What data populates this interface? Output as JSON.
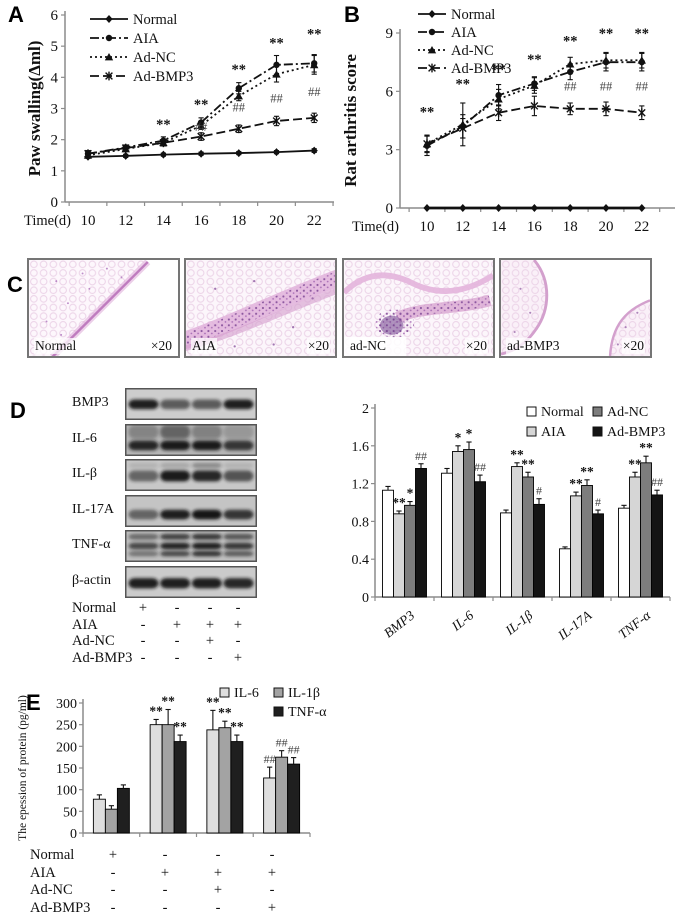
{
  "figure": {
    "panels": {
      "A": {
        "label": "A"
      },
      "B": {
        "label": "B"
      },
      "C": {
        "label": "C",
        "images": [
          {
            "name": "Normal",
            "mag": "×20"
          },
          {
            "name": "AIA",
            "mag": "×20"
          },
          {
            "name": "ad-NC",
            "mag": "×20"
          },
          {
            "name": "ad-BMP3",
            "mag": "×20"
          }
        ]
      },
      "D": {
        "label": "D",
        "blots": {
          "rows": [
            {
              "label": "BMP3",
              "bg": "#cdcdcd",
              "bands": [
                {
                  "t": 0.36,
                  "h": 0.3,
                  "la": [
                    0.95,
                    0.62,
                    0.62,
                    0.95
                  ]
                }
              ]
            },
            {
              "label": "IL-6",
              "bg": "#b5b5b5",
              "bands": [
                {
                  "t": 0.04,
                  "h": 0.42,
                  "la": [
                    0.3,
                    0.5,
                    0.32,
                    0.18
                  ]
                },
                {
                  "t": 0.52,
                  "h": 0.3,
                  "la": [
                    0.9,
                    0.97,
                    0.97,
                    0.8
                  ]
                }
              ]
            },
            {
              "label": "IL-β",
              "bg": "#c8c8c8",
              "bands": [
                {
                  "t": 0.12,
                  "h": 0.16,
                  "la": [
                    0.12,
                    0.18,
                    0.35,
                    0.12
                  ]
                },
                {
                  "t": 0.36,
                  "h": 0.34,
                  "la": [
                    0.55,
                    0.97,
                    0.9,
                    0.65
                  ]
                }
              ]
            },
            {
              "label": "IL-17A",
              "bg": "#c4c4c4",
              "bands": [
                {
                  "t": 0.46,
                  "h": 0.3,
                  "la": [
                    0.55,
                    0.95,
                    1.0,
                    0.82
                  ]
                }
              ]
            },
            {
              "label": "TNF-α",
              "bg": "#bfbfbf",
              "bands": [
                {
                  "t": 0.12,
                  "h": 0.18,
                  "la": [
                    0.5,
                    0.75,
                    0.8,
                    0.62
                  ]
                },
                {
                  "t": 0.4,
                  "h": 0.2,
                  "la": [
                    0.7,
                    0.92,
                    0.95,
                    0.8
                  ]
                },
                {
                  "t": 0.66,
                  "h": 0.16,
                  "la": [
                    0.45,
                    0.72,
                    0.85,
                    0.6
                  ]
                }
              ]
            },
            {
              "label": "β-actin",
              "bg": "#cbcbcb",
              "bands": [
                {
                  "t": 0.38,
                  "h": 0.32,
                  "la": [
                    0.95,
                    0.95,
                    0.95,
                    0.9
                  ]
                }
              ]
            }
          ]
        },
        "conditions": {
          "rows": [
            {
              "label": "Normal",
              "cells": [
                "+",
                "-",
                "-",
                "-"
              ]
            },
            {
              "label": "AIA",
              "cells": [
                "-",
                "+",
                "+",
                "+"
              ]
            },
            {
              "label": "Ad-NC",
              "cells": [
                "-",
                "-",
                "+",
                "-"
              ]
            },
            {
              "label": "Ad-BMP3",
              "cells": [
                "-",
                "-",
                "-",
                "+"
              ]
            }
          ]
        }
      },
      "E": {
        "label": "E",
        "conditions": {
          "rows": [
            {
              "label": "Normal",
              "cells": [
                "+",
                "-",
                "-",
                "-"
              ]
            },
            {
              "label": "AIA",
              "cells": [
                "-",
                "+",
                "+",
                "+"
              ]
            },
            {
              "label": "Ad-NC",
              "cells": [
                "-",
                "-",
                "+",
                "-"
              ]
            },
            {
              "label": "Ad-BMP3",
              "cells": [
                "-",
                "-",
                "-",
                "+"
              ]
            }
          ]
        }
      }
    },
    "palette": {
      "ink": "#111111",
      "axis_gray": "#8c8c8c",
      "histology_pink": "#f9eff7",
      "histology_purple": "#8d58a0"
    }
  },
  "chart_data": [
    {
      "id": "A",
      "panel": "A",
      "type": "line",
      "x": [
        10,
        12,
        14,
        16,
        18,
        20,
        22
      ],
      "xlabel": "Time(d)",
      "ylabel": "Paw swalling(Δml)",
      "ylim": [
        0,
        6
      ],
      "yticks": [
        0,
        1,
        2,
        3,
        4,
        5,
        6
      ],
      "grid": false,
      "legend_position": "top-left-inside",
      "series": [
        {
          "name": "Normal",
          "marker": "diamond",
          "dash": "solid",
          "values": [
            1.45,
            1.48,
            1.52,
            1.55,
            1.57,
            1.6,
            1.65
          ],
          "err": [
            0.05,
            0.05,
            0.05,
            0.05,
            0.05,
            0.05,
            0.06
          ]
        },
        {
          "name": "AIA",
          "marker": "circle",
          "dash": "dashdot",
          "values": [
            1.55,
            1.75,
            1.97,
            2.55,
            3.65,
            4.4,
            4.45
          ],
          "err": [
            0.1,
            0.08,
            0.12,
            0.15,
            0.18,
            0.3,
            0.28
          ]
        },
        {
          "name": "Ad-NC",
          "marker": "triangle",
          "dash": "dot",
          "values": [
            1.5,
            1.7,
            1.9,
            2.45,
            3.4,
            4.1,
            4.4
          ],
          "err": [
            0.08,
            0.07,
            0.1,
            0.12,
            0.15,
            0.25,
            0.3
          ]
        },
        {
          "name": "Ad-BMP3",
          "marker": "xstar",
          "dash": "dash",
          "values": [
            1.55,
            1.73,
            1.9,
            2.1,
            2.35,
            2.6,
            2.7
          ],
          "err": [
            0.08,
            0.07,
            0.1,
            0.12,
            0.12,
            0.15,
            0.15
          ]
        }
      ],
      "annotations": [
        {
          "x": 14,
          "y": 2.35,
          "t": "**"
        },
        {
          "x": 16,
          "y": 2.98,
          "t": "**"
        },
        {
          "x": 18,
          "y": 4.1,
          "t": "**"
        },
        {
          "x": 20,
          "y": 4.95,
          "t": "**"
        },
        {
          "x": 22,
          "y": 5.25,
          "t": "**"
        },
        {
          "x": 16,
          "y": 2.28,
          "t": "##"
        },
        {
          "x": 18,
          "y": 2.9,
          "t": "##"
        },
        {
          "x": 20,
          "y": 3.2,
          "t": "##"
        },
        {
          "x": 22,
          "y": 3.4,
          "t": "##"
        }
      ]
    },
    {
      "id": "B",
      "panel": "B",
      "type": "line",
      "x": [
        10,
        12,
        14,
        16,
        18,
        20,
        22
      ],
      "xlabel": "Time(d)",
      "ylabel": "Rat arthritis score",
      "ylim": [
        0,
        9
      ],
      "yticks": [
        0,
        3,
        6,
        9
      ],
      "grid": false,
      "legend_position": "top-left-inside",
      "series": [
        {
          "name": "Normal",
          "marker": "diamond",
          "dash": "solid",
          "values": [
            0,
            0,
            0,
            0,
            0,
            0,
            0
          ],
          "err": [
            0,
            0,
            0,
            0,
            0,
            0,
            0
          ]
        },
        {
          "name": "AIA",
          "marker": "circle",
          "dash": "dashdot",
          "values": [
            3.2,
            4.2,
            5.8,
            6.4,
            7.0,
            7.5,
            7.5
          ],
          "err": [
            0.5,
            0.6,
            0.55,
            0.35,
            0.4,
            0.45,
            0.45
          ]
        },
        {
          "name": "Ad-NC",
          "marker": "triangle",
          "dash": "dot",
          "values": [
            3.3,
            4.3,
            5.6,
            6.3,
            7.4,
            7.6,
            7.6
          ],
          "err": [
            0.45,
            1.1,
            0.5,
            0.4,
            0.35,
            0.4,
            0.4
          ]
        },
        {
          "name": "Ad-BMP3",
          "marker": "xstar",
          "dash": "dash",
          "values": [
            3.3,
            4.1,
            4.9,
            5.25,
            5.1,
            5.1,
            4.9
          ],
          "err": [
            0.4,
            0.5,
            0.4,
            0.5,
            0.3,
            0.35,
            0.35
          ]
        }
      ],
      "annotations": [
        {
          "x": 10,
          "y": 4.7,
          "t": "**"
        },
        {
          "x": 12,
          "y": 6.15,
          "t": "**"
        },
        {
          "x": 14,
          "y": 6.9,
          "t": "**"
        },
        {
          "x": 16,
          "y": 7.4,
          "t": "**"
        },
        {
          "x": 18,
          "y": 8.35,
          "t": "**"
        },
        {
          "x": 20,
          "y": 8.75,
          "t": "**"
        },
        {
          "x": 22,
          "y": 8.75,
          "t": "**"
        },
        {
          "x": 18,
          "y": 6.05,
          "t": "##"
        },
        {
          "x": 20,
          "y": 6.05,
          "t": "##"
        },
        {
          "x": 22,
          "y": 6.05,
          "t": "##"
        }
      ]
    },
    {
      "id": "D",
      "panel": "D",
      "type": "bar",
      "categories": [
        "BMP3",
        "IL-6",
        "IL-1β",
        "IL-17A",
        "TNF-α"
      ],
      "ylim": [
        0,
        2
      ],
      "yticks": [
        0,
        0.4,
        0.8,
        1.2,
        1.6,
        2
      ],
      "ytick_labels": [
        "0",
        "0.4",
        "0.8",
        "1.2",
        "1.6",
        "2"
      ],
      "grid": false,
      "legend_position": "top-right-inside",
      "series": [
        {
          "name": "Normal",
          "color": "#ffffff",
          "values": [
            1.13,
            1.31,
            0.89,
            0.51,
            0.94
          ],
          "err": [
            0.04,
            0.05,
            0.03,
            0.02,
            0.03
          ],
          "ann": [
            "",
            "",
            "",
            "",
            ""
          ]
        },
        {
          "name": "AIA",
          "color": "#d6d6d6",
          "values": [
            0.88,
            1.54,
            1.38,
            1.07,
            1.27
          ],
          "err": [
            0.03,
            0.06,
            0.04,
            0.04,
            0.05
          ],
          "ann": [
            "**",
            "*",
            "**",
            "**",
            "**"
          ]
        },
        {
          "name": "Ad-NC",
          "color": "#7d7d7d",
          "values": [
            0.97,
            1.56,
            1.27,
            1.18,
            1.42
          ],
          "err": [
            0.04,
            0.08,
            0.05,
            0.06,
            0.07
          ],
          "ann": [
            "*",
            "*",
            "**",
            "**",
            "**"
          ]
        },
        {
          "name": "Ad-BMP3",
          "color": "#141414",
          "values": [
            1.36,
            1.22,
            0.98,
            0.88,
            1.08
          ],
          "err": [
            0.05,
            0.07,
            0.06,
            0.04,
            0.05
          ],
          "ann": [
            "##",
            "##",
            "#",
            "#",
            "##"
          ]
        }
      ]
    },
    {
      "id": "E",
      "panel": "E",
      "type": "bar",
      "categories": [
        "Normal",
        "AIA",
        "Ad-NC",
        "Ad-BMP3"
      ],
      "show_category_labels": false,
      "ylabel": "The epession of protein (pg/ml)",
      "ylim": [
        0,
        300
      ],
      "yticks": [
        0,
        50,
        100,
        150,
        200,
        250,
        300
      ],
      "ytick_labels": [
        "0",
        "50",
        "100",
        "150",
        "200",
        "250",
        "300"
      ],
      "grid": false,
      "legend_position": "top-right-inside",
      "series": [
        {
          "name": "IL-6",
          "color": "#dedede",
          "values": [
            78,
            250,
            238,
            127
          ],
          "err": [
            10,
            12,
            45,
            25
          ],
          "ann": [
            "",
            "**",
            "**",
            "##"
          ]
        },
        {
          "name": "IL-1β",
          "color": "#a3a3a3",
          "values": [
            55,
            250,
            243,
            175
          ],
          "err": [
            8,
            35,
            15,
            15
          ],
          "ann": [
            "",
            "**",
            "**",
            "##"
          ]
        },
        {
          "name": "TNF-α",
          "color": "#1f1f1f",
          "values": [
            103,
            211,
            211,
            159
          ],
          "err": [
            8,
            15,
            15,
            15
          ],
          "ann": [
            "",
            "**",
            "**",
            "##"
          ]
        }
      ]
    }
  ]
}
